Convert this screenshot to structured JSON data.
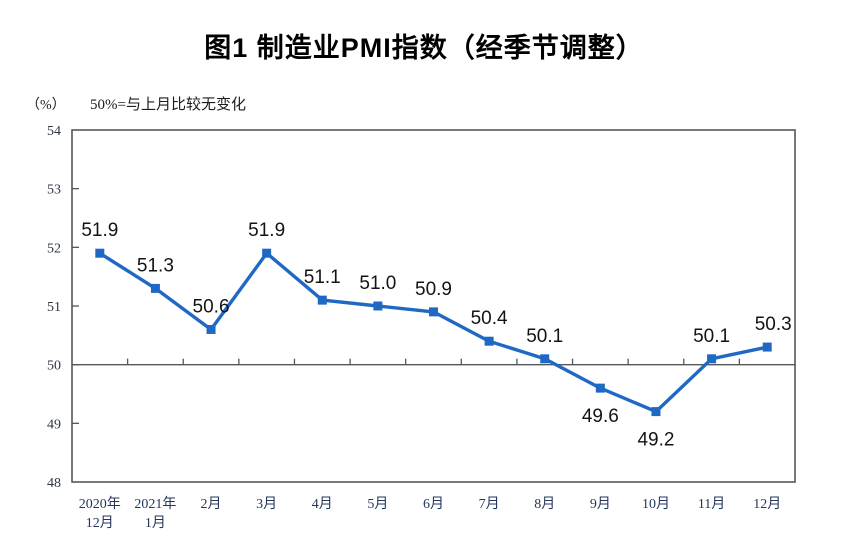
{
  "title": "图1 制造业PMI指数（经季节调整）",
  "y_axis_unit": "（%）",
  "note": "50%=与上月比较无变化",
  "chart_data": {
    "type": "line",
    "title": "图1 制造业PMI指数（经季节调整）",
    "categories": [
      [
        "2020年",
        "12月"
      ],
      [
        "2021年",
        "1月"
      ],
      [
        "2月"
      ],
      [
        "3月"
      ],
      [
        "4月"
      ],
      [
        "5月"
      ],
      [
        "6月"
      ],
      [
        "7月"
      ],
      [
        "8月"
      ],
      [
        "9月"
      ],
      [
        "10月"
      ],
      [
        "11月"
      ],
      [
        "12月"
      ]
    ],
    "values": [
      51.9,
      51.3,
      50.6,
      51.9,
      51.1,
      51.0,
      50.9,
      50.4,
      50.1,
      49.6,
      49.2,
      50.1,
      50.3
    ],
    "labels": [
      "51.9",
      "51.3",
      "50.6",
      "51.9",
      "51.1",
      "51.0",
      "50.9",
      "50.4",
      "50.1",
      "49.6",
      "49.2",
      "50.1",
      "50.3"
    ],
    "label_placement": [
      "above",
      "above",
      "above",
      "above",
      "above",
      "above",
      "above",
      "above",
      "above",
      "below",
      "below",
      "above",
      "above"
    ],
    "ylim": [
      48,
      54
    ],
    "ytick_step": 1,
    "yticks": [
      "48",
      "49",
      "50",
      "51",
      "52",
      "53",
      "54"
    ],
    "reference_line": 50,
    "xlabel": "",
    "ylabel": "（%）",
    "grid": false,
    "legend": false,
    "line_color": "#1f69c4",
    "marker": "square",
    "marker_color": "#1f69c4",
    "axis_color": "#55565a",
    "data_label_color": "#141414"
  }
}
